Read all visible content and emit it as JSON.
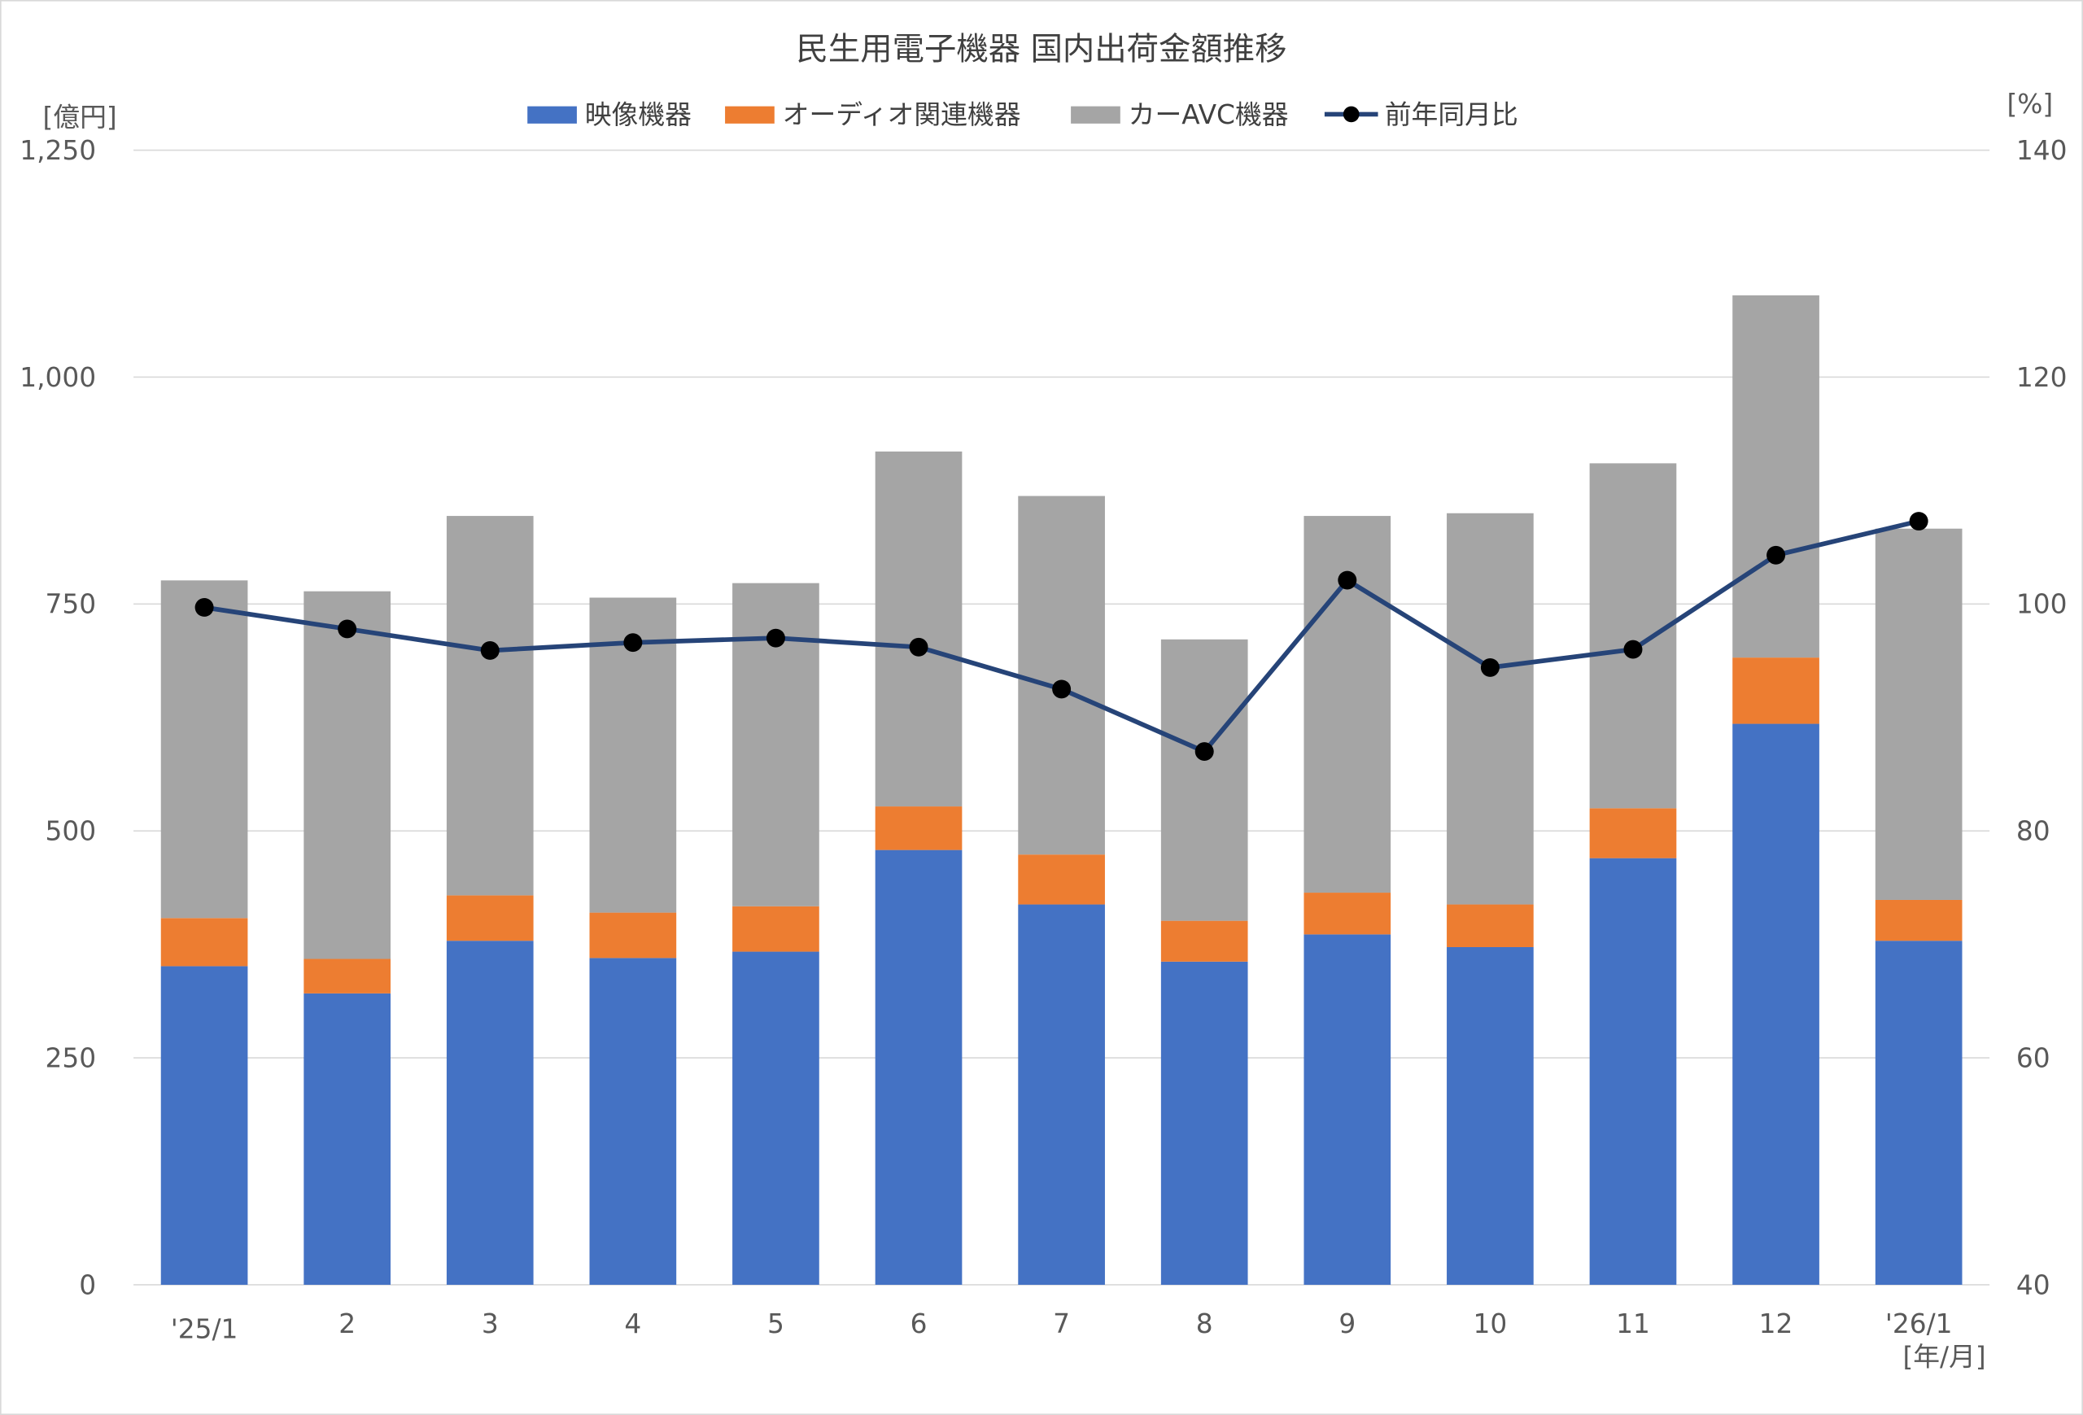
{
  "chart_data": {
    "type": "bar",
    "stacked": true,
    "title": "民生用電子機器 国内出荷金額推移",
    "ylabel": "[億円]",
    "y2label": "[%]",
    "xlabel": "[年/月]",
    "categories": [
      "'25/1",
      "2",
      "3",
      "4",
      "5",
      "6",
      "7",
      "8",
      "9",
      "10",
      "11",
      "12",
      "'26/1"
    ],
    "ylim": [
      0,
      1250
    ],
    "yticks": [
      0,
      250,
      500,
      750,
      1000,
      1250
    ],
    "ytick_labels": [
      "0",
      "250",
      "500",
      "750",
      "1,000",
      "1,250"
    ],
    "y2lim": [
      40,
      140
    ],
    "y2ticks": [
      40,
      60,
      80,
      100,
      120,
      140
    ],
    "grid": true,
    "legend": "top",
    "series": [
      {
        "name": "映像機器",
        "type": "bar",
        "color": "#4472C4",
        "values": [
          351,
          321,
          379,
          360,
          367,
          479,
          419,
          356,
          386,
          372,
          470,
          618,
          379
        ]
      },
      {
        "name": "オーディオ関連機器",
        "type": "bar",
        "color": "#ED7D31",
        "values": [
          53,
          38,
          50,
          50,
          50,
          48,
          55,
          45,
          46,
          47,
          55,
          73,
          45
        ]
      },
      {
        "name": "カーAVC機器",
        "type": "bar",
        "color": "#A5A5A5",
        "values": [
          372,
          405,
          418,
          347,
          356,
          391,
          395,
          310,
          415,
          431,
          380,
          399,
          409
        ]
      },
      {
        "name": "前年同月比",
        "type": "line",
        "axis": "right",
        "color": "#264478",
        "values": [
          99.7,
          97.8,
          95.9,
          96.6,
          97.0,
          96.2,
          92.5,
          87.0,
          102.1,
          94.4,
          96.0,
          104.3,
          107.3
        ]
      }
    ]
  }
}
